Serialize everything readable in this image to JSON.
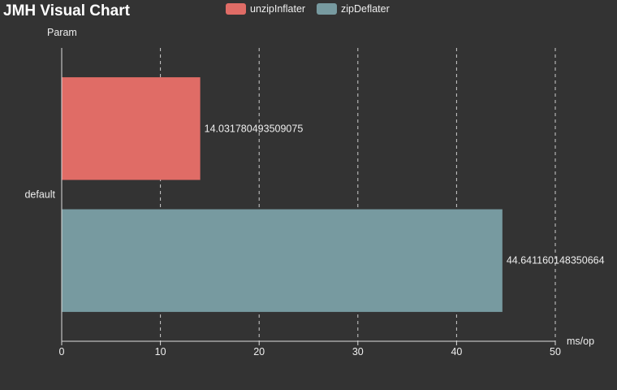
{
  "chart_data": {
    "type": "bar",
    "orientation": "horizontal",
    "title": "JMH Visual Chart",
    "xlabel": "ms/op",
    "ylabel": "Param",
    "categories": [
      "default"
    ],
    "xlim": [
      0,
      50
    ],
    "xticks": [
      0,
      10,
      20,
      30,
      40,
      50
    ],
    "grid": true,
    "legend_position": "top",
    "series": [
      {
        "name": "unzipInflater",
        "values": [
          14.031780493509075
        ],
        "label": "14.031780493509075",
        "color": "#e06c66"
      },
      {
        "name": "zipDeflater",
        "values": [
          44.641160148350664
        ],
        "label": "44.641160148350664",
        "color": "#779aa0"
      }
    ]
  }
}
